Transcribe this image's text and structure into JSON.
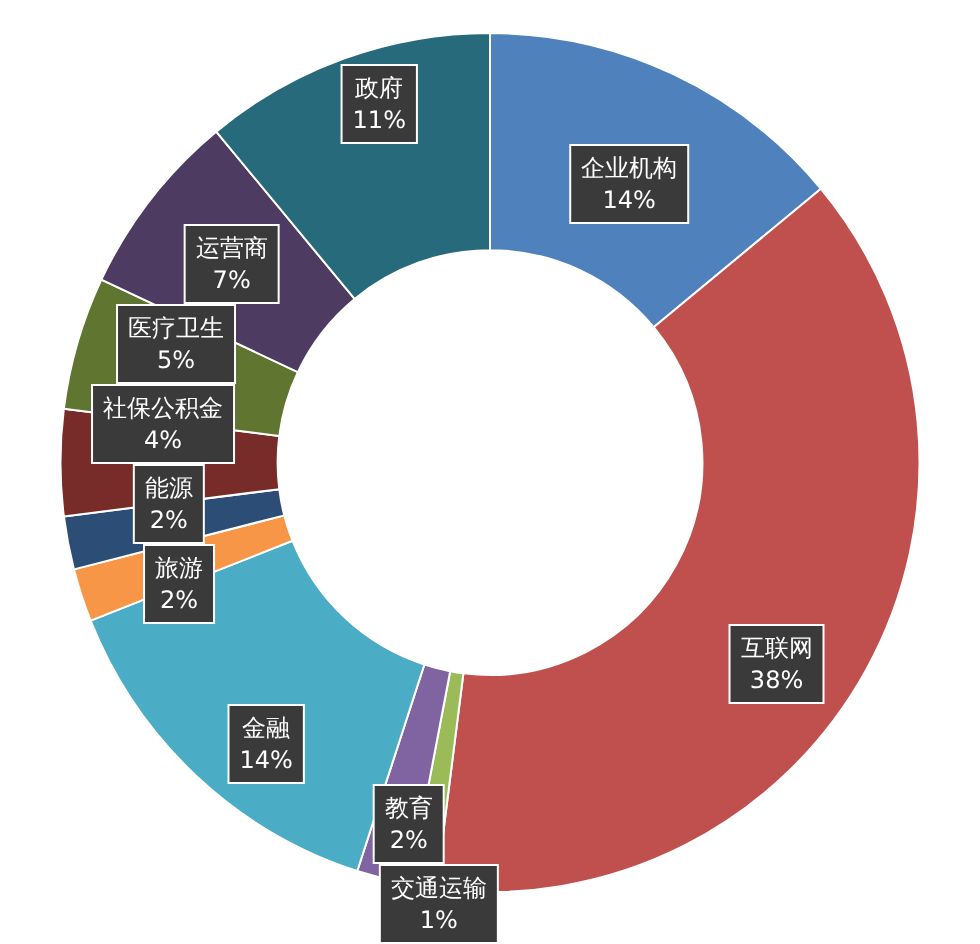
{
  "chart_data": {
    "type": "donut",
    "categories": [
      "企业机构",
      "互联网",
      "交通运输",
      "教育",
      "金融",
      "旅游",
      "能源",
      "社保公积金",
      "医疗卫生",
      "运营商",
      "政府"
    ],
    "values": [
      14,
      38,
      1,
      2,
      14,
      2,
      2,
      4,
      5,
      7,
      11
    ],
    "value_labels": [
      "14%",
      "38%",
      "1%",
      "2%",
      "14%",
      "2%",
      "2%",
      "4%",
      "5%",
      "7%",
      "11%"
    ],
    "colors": [
      "#4f81bd",
      "#c0504d",
      "#9bbb59",
      "#8064a2",
      "#4bacc6",
      "#f79646",
      "#2c4d75",
      "#772c2a",
      "#5f7530",
      "#4d3b62",
      "#276a7c"
    ],
    "legend": false
  }
}
